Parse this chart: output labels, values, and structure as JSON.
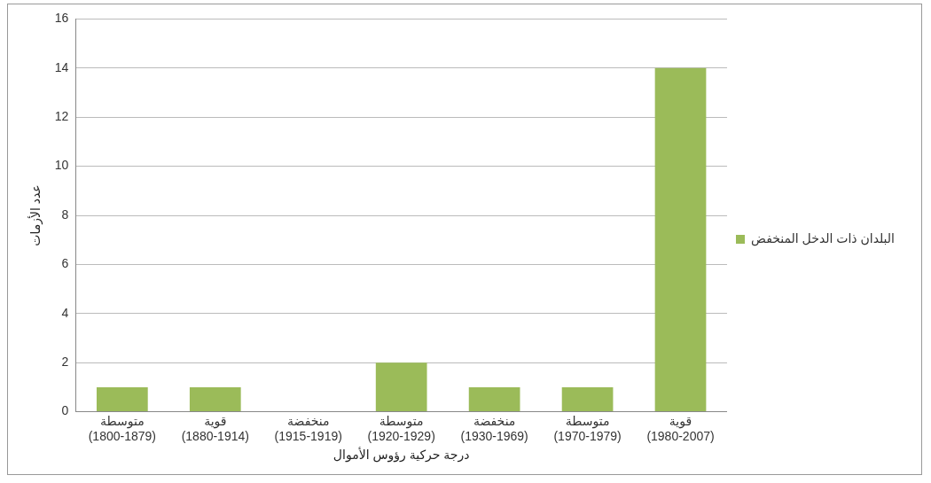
{
  "chart_data": {
    "type": "bar",
    "xlabel": "درجة حركية رؤوس الأموال",
    "ylabel": "عدد الأزمات",
    "categories": [
      "متوسطة\n(1800-1879)",
      "قوية\n(1880-1914)",
      "منخفضة\n(1915-1919)",
      "متوسطة\n(1920-1929)",
      "منخفضة\n(1930-1969)",
      "متوسطة\n(1970-1979)",
      "قوية\n(1980-2007)"
    ],
    "series": [
      {
        "name": "البلدان ذات الدخل المنخفض",
        "color": "#9bbb59",
        "values": [
          1,
          1,
          0,
          2,
          1,
          1,
          14
        ]
      }
    ],
    "ylim": [
      0,
      16
    ],
    "yticks": [
      0,
      2,
      4,
      6,
      8,
      10,
      12,
      14,
      16
    ],
    "grid": "y",
    "legend": "right"
  }
}
